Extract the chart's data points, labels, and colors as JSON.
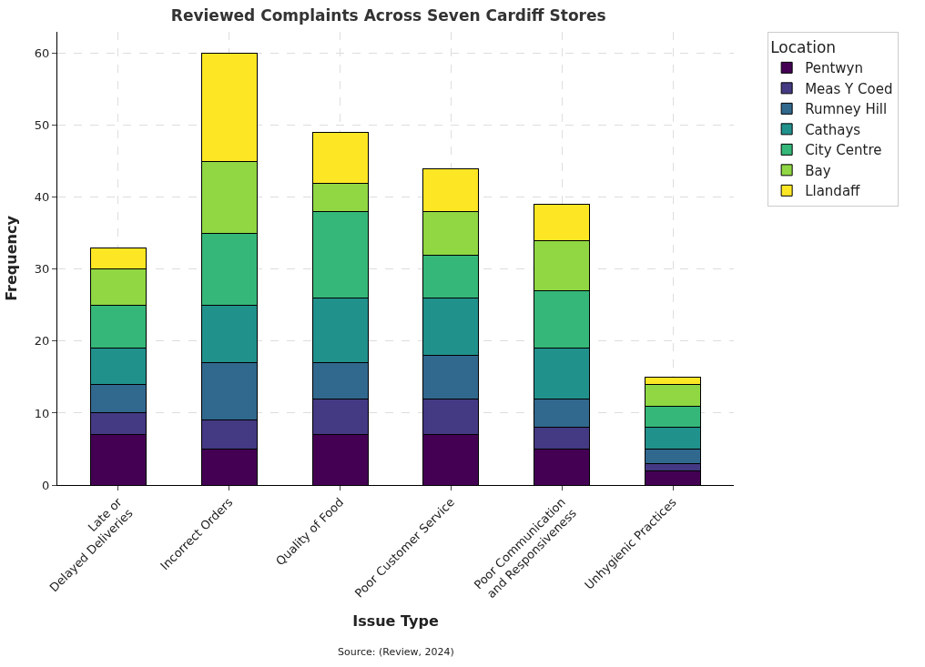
{
  "chart_data": {
    "type": "bar",
    "stacked": true,
    "title": "Reviewed Complaints Across Seven Cardiff Stores",
    "xlabel": "Issue Type",
    "ylabel": "Frequency",
    "legend_title": "Location",
    "categories": [
      "Late or\nDelayed Deliveries",
      "Incorrect Orders",
      "Quality of Food",
      "Poor Customer Service",
      "Poor Communication\nand Responsiveness",
      "Unhygienic Practices"
    ],
    "series": [
      {
        "name": "Pentwyn",
        "color": "#440154",
        "values": [
          7,
          5,
          7,
          7,
          5,
          2
        ]
      },
      {
        "name": "Meas Y Coed",
        "color": "#443983",
        "values": [
          3,
          4,
          5,
          5,
          3,
          1
        ]
      },
      {
        "name": "Rumney Hill",
        "color": "#31688e",
        "values": [
          4,
          8,
          5,
          6,
          4,
          2
        ]
      },
      {
        "name": "Cathays",
        "color": "#21918c",
        "values": [
          5,
          8,
          9,
          8,
          7,
          3
        ]
      },
      {
        "name": "City Centre",
        "color": "#35b779",
        "values": [
          6,
          10,
          12,
          6,
          8,
          3
        ]
      },
      {
        "name": "Bay",
        "color": "#90d743",
        "values": [
          5,
          10,
          4,
          6,
          7,
          3
        ]
      },
      {
        "name": "Llandaff",
        "color": "#fde725",
        "values": [
          3,
          15,
          7,
          6,
          5,
          1
        ]
      }
    ],
    "ylim": [
      0,
      63
    ],
    "yticks": [
      0,
      10,
      20,
      30,
      40,
      50,
      60
    ],
    "grid": true,
    "legend": "top right",
    "annotations": [
      "Source: (Review, 2024)"
    ]
  }
}
